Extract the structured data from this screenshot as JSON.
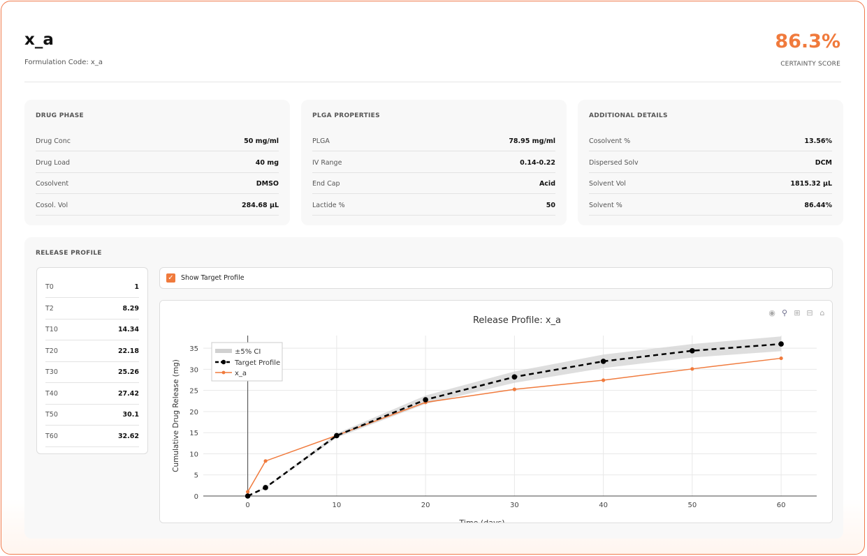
{
  "header": {
    "title": "x_a",
    "formulation_code": "Formulation Code: x_a",
    "score": "86.3%",
    "score_label": "CERTAINTY SCORE"
  },
  "cards": [
    {
      "title": "DRUG PHASE",
      "rows": [
        {
          "label": "Drug Conc",
          "value": "50 mg/ml"
        },
        {
          "label": "Drug Load",
          "value": "40 mg"
        },
        {
          "label": "Cosolvent",
          "value": "DMSO"
        },
        {
          "label": "Cosol. Vol",
          "value": "284.68 µL"
        }
      ]
    },
    {
      "title": "PLGA PROPERTIES",
      "rows": [
        {
          "label": "PLGA",
          "value": "78.95 mg/ml"
        },
        {
          "label": "IV Range",
          "value": "0.14-0.22"
        },
        {
          "label": "End Cap",
          "value": "Acid"
        },
        {
          "label": "Lactide %",
          "value": "50"
        }
      ]
    },
    {
      "title": "ADDITIONAL DETAILS",
      "rows": [
        {
          "label": "Cosolvent %",
          "value": "13.56%"
        },
        {
          "label": "Dispersed Solv",
          "value": "DCM"
        },
        {
          "label": "Solvent Vol",
          "value": "1815.32 µL"
        },
        {
          "label": "Solvent %",
          "value": "86.44%"
        }
      ]
    }
  ],
  "release": {
    "title": "RELEASE PROFILE",
    "timepoints": [
      {
        "label": "T0",
        "value": "1"
      },
      {
        "label": "T2",
        "value": "8.29"
      },
      {
        "label": "T10",
        "value": "14.34"
      },
      {
        "label": "T20",
        "value": "22.18"
      },
      {
        "label": "T30",
        "value": "25.26"
      },
      {
        "label": "T40",
        "value": "27.42"
      },
      {
        "label": "T50",
        "value": "30.1"
      },
      {
        "label": "T60",
        "value": "32.62"
      }
    ],
    "show_target_label": "Show Target Profile",
    "show_target_checked": true,
    "modebar_icons": [
      "camera-icon",
      "zoom-icon",
      "zoom-in-icon",
      "zoom-out-icon",
      "home-icon"
    ]
  },
  "chart_data": {
    "type": "line",
    "title": "Release Profile: x_a",
    "xlabel": "Time (days)",
    "ylabel": "Cumulative Drug Release (mg)",
    "xlim": [
      -5,
      64
    ],
    "ylim": [
      0,
      38
    ],
    "x_ticks": [
      0,
      10,
      20,
      30,
      40,
      50,
      60
    ],
    "y_ticks": [
      0,
      5,
      10,
      15,
      20,
      25,
      30,
      35
    ],
    "grid": true,
    "legend_position": "top-left",
    "series": [
      {
        "name": "±5% CI",
        "kind": "band",
        "color": "#d0d0d0",
        "x": [
          0,
          2,
          10,
          20,
          30,
          40,
          50,
          60
        ],
        "lower": [
          0,
          1.8,
          13.8,
          21.8,
          26.8,
          30.3,
          32.8,
          34.3
        ],
        "upper": [
          0,
          2.1,
          14.8,
          23.8,
          29.5,
          33.5,
          36.0,
          37.8
        ]
      },
      {
        "name": "Target Profile",
        "kind": "dashed-markers",
        "color": "#000000",
        "x": [
          0,
          2,
          10,
          20,
          30,
          40,
          50,
          60
        ],
        "y": [
          0,
          2,
          14.3,
          22.8,
          28.2,
          31.9,
          34.4,
          36.0
        ]
      },
      {
        "name": "x_a",
        "kind": "line-markers",
        "color": "#f07a3c",
        "x": [
          0,
          2,
          10,
          20,
          30,
          40,
          50,
          60
        ],
        "y": [
          1,
          8.29,
          14.34,
          22.18,
          25.26,
          27.42,
          30.1,
          32.62
        ]
      }
    ]
  }
}
